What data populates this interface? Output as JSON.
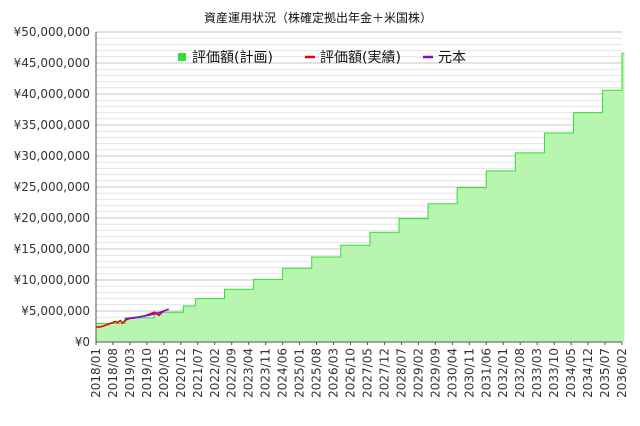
{
  "chart_data": {
    "type": "area",
    "title": "資産運用状況（株確定拠出年金＋米国株）",
    "xlabel": "",
    "ylabel": "",
    "ylim": [
      0,
      50000000
    ],
    "x_range": [
      "2018/01",
      "2036/02"
    ],
    "y_ticks": [
      "¥0",
      "¥5,000,000",
      "¥10,000,000",
      "¥15,000,000",
      "¥20,000,000",
      "¥25,000,000",
      "¥30,000,000",
      "¥35,000,000",
      "¥40,000,000",
      "¥45,000,000",
      "¥50,000,000"
    ],
    "x_tick_labels": [
      "2018/01",
      "2018/08",
      "2019/03",
      "2019/10",
      "2020/05",
      "2020/12",
      "2021/07",
      "2022/02",
      "2022/09",
      "2023/04",
      "2023/11",
      "2024/06",
      "2025/01",
      "2025/08",
      "2026/03",
      "2026/10",
      "2027/05",
      "2027/12",
      "2028/07",
      "2029/02",
      "2029/09",
      "2030/04",
      "2030/11",
      "2031/06",
      "2032/01",
      "2032/08",
      "2033/03",
      "2033/10",
      "2034/05",
      "2034/12",
      "2035/07",
      "2036/02"
    ],
    "grid": true,
    "legend_position": "top",
    "series": [
      {
        "name": "評価額(計画)",
        "kind": "step-area",
        "color": "#33dd33",
        "fill": "#b8f5b0",
        "points": [
          [
            "2018/01",
            3000000
          ],
          [
            "2019/01",
            3000000
          ],
          [
            "2019/01",
            3900000
          ],
          [
            "2020/01",
            3900000
          ],
          [
            "2020/01",
            4800000
          ],
          [
            "2021/01",
            4800000
          ],
          [
            "2021/01",
            5800000
          ],
          [
            "2021/06",
            5800000
          ],
          [
            "2021/06",
            7000000
          ],
          [
            "2022/06",
            7000000
          ],
          [
            "2022/06",
            8500000
          ],
          [
            "2023/06",
            8500000
          ],
          [
            "2023/06",
            10100000
          ],
          [
            "2024/06",
            10100000
          ],
          [
            "2024/06",
            11900000
          ],
          [
            "2025/06",
            11900000
          ],
          [
            "2025/06",
            13700000
          ],
          [
            "2026/06",
            13700000
          ],
          [
            "2026/06",
            15600000
          ],
          [
            "2027/06",
            15600000
          ],
          [
            "2027/06",
            17700000
          ],
          [
            "2028/06",
            17700000
          ],
          [
            "2028/06",
            19900000
          ],
          [
            "2029/06",
            19900000
          ],
          [
            "2029/06",
            22300000
          ],
          [
            "2030/06",
            22300000
          ],
          [
            "2030/06",
            24900000
          ],
          [
            "2031/06",
            24900000
          ],
          [
            "2031/06",
            27600000
          ],
          [
            "2032/06",
            27600000
          ],
          [
            "2032/06",
            30500000
          ],
          [
            "2033/06",
            30500000
          ],
          [
            "2033/06",
            33700000
          ],
          [
            "2034/06",
            33700000
          ],
          [
            "2034/06",
            37000000
          ],
          [
            "2035/06",
            37000000
          ],
          [
            "2035/06",
            40600000
          ],
          [
            "2036/02",
            40600000
          ],
          [
            "2036/02",
            46600000
          ],
          [
            "2036/03",
            46600000
          ]
        ]
      },
      {
        "name": "評価額(実績)",
        "kind": "line",
        "color": "#ee0000",
        "points": [
          [
            "2018/01",
            2400000
          ],
          [
            "2018/03",
            2450000
          ],
          [
            "2018/05",
            2700000
          ],
          [
            "2018/07",
            3000000
          ],
          [
            "2018/09",
            3300000
          ],
          [
            "2018/10",
            3150000
          ],
          [
            "2018/11",
            3450000
          ],
          [
            "2018/12",
            3050000
          ],
          [
            "2019/01",
            3500000
          ],
          [
            "2019/03",
            3800000
          ],
          [
            "2019/05",
            3900000
          ],
          [
            "2019/07",
            4050000
          ],
          [
            "2019/09",
            4200000
          ],
          [
            "2019/11",
            4500000
          ],
          [
            "2020/01",
            4800000
          ],
          [
            "2020/03",
            4300000
          ],
          [
            "2020/04",
            4700000
          ],
          [
            "2020/05",
            5000000
          ]
        ]
      },
      {
        "name": "元本",
        "kind": "line",
        "color": "#8800ee",
        "points": [
          [
            "2019/01",
            3700000
          ],
          [
            "2019/04",
            3900000
          ],
          [
            "2019/07",
            4050000
          ],
          [
            "2019/10",
            4250000
          ],
          [
            "2020/01",
            4500000
          ],
          [
            "2020/03",
            4700000
          ],
          [
            "2020/05",
            5000000
          ],
          [
            "2020/07",
            5300000
          ]
        ]
      }
    ]
  }
}
